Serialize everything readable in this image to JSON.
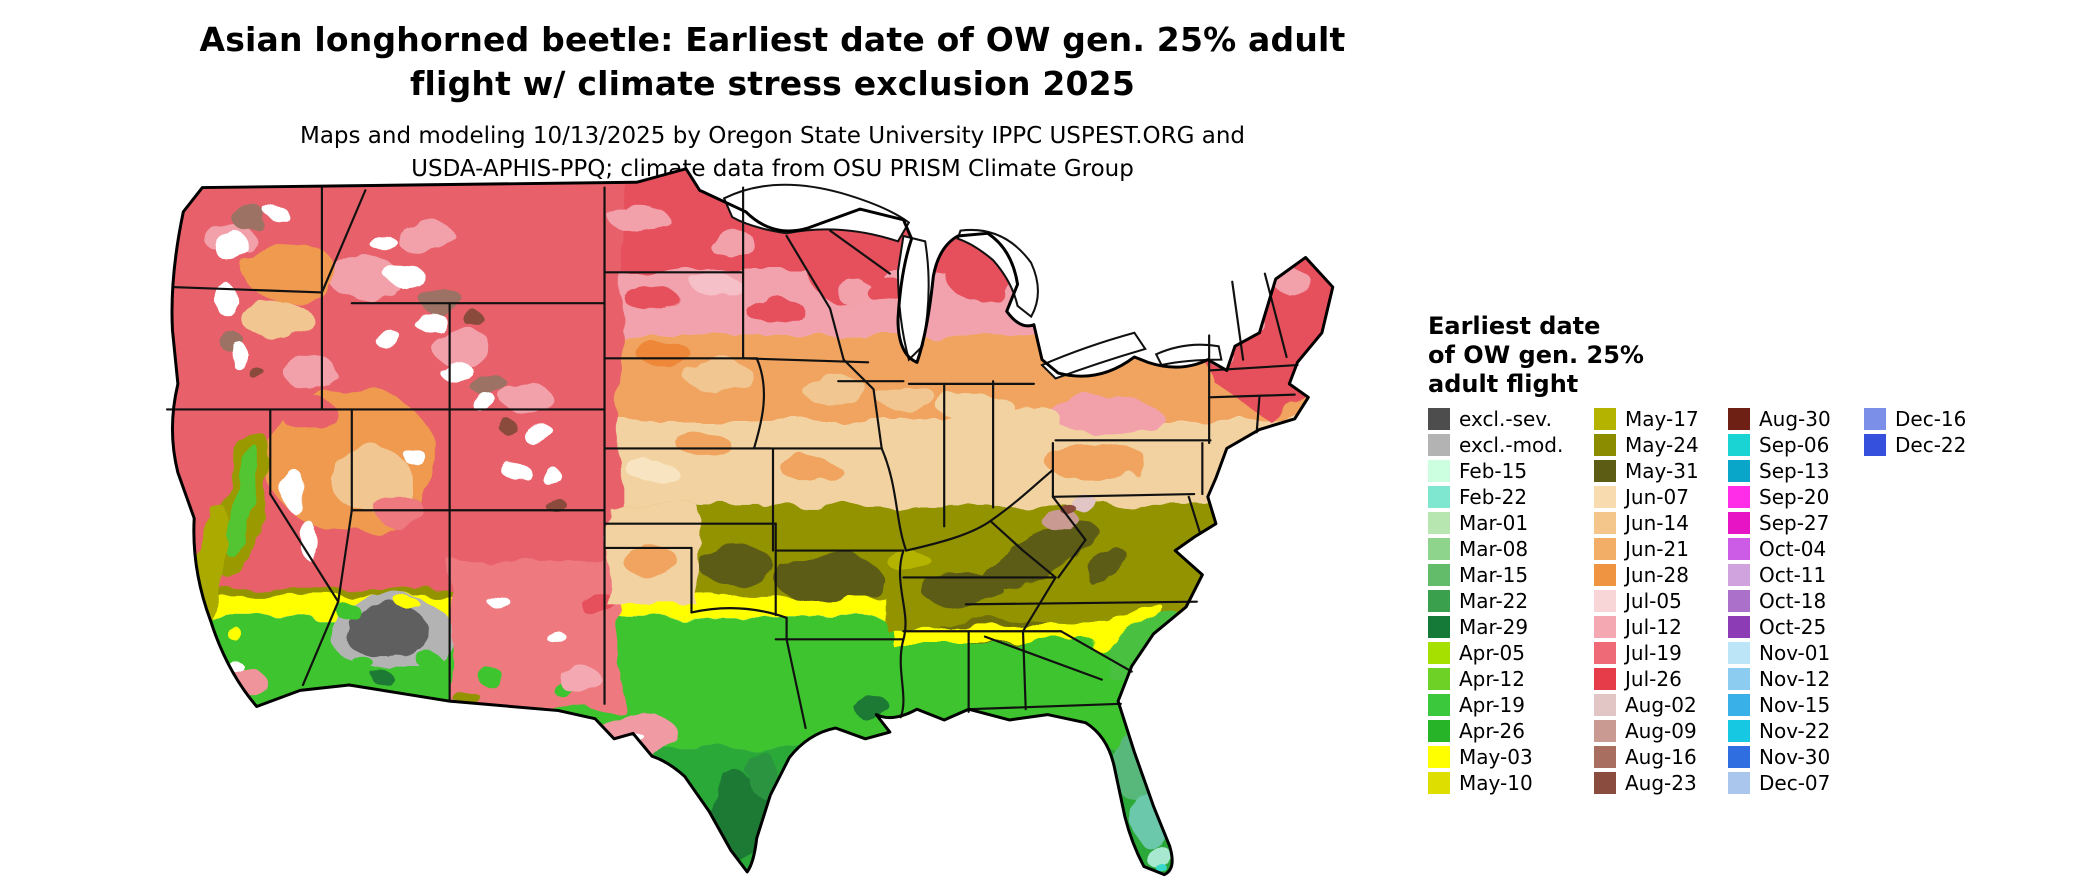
{
  "header": {
    "title_line1": "Asian longhorned beetle: Earliest date of OW gen. 25% adult",
    "title_line2": "flight w/ climate stress exclusion 2025",
    "subtitle_line1": "Maps and modeling 10/13/2025 by Oregon State University IPPC USPEST.ORG and",
    "subtitle_line2": "USDA-APHIS-PPQ; climate data from OSU PRISM Climate Group"
  },
  "legend": {
    "title_lines": [
      "Earliest date",
      "of OW gen. 25%",
      "adult flight"
    ],
    "columns": [
      [
        {
          "label": "excl.-sev.",
          "color": "#4d4d4d"
        },
        {
          "label": "excl.-mod.",
          "color": "#b3b3b3"
        },
        {
          "label": "Feb-15",
          "color": "#ccffe0"
        },
        {
          "label": "Feb-22",
          "color": "#7fe6d0"
        },
        {
          "label": "Mar-01",
          "color": "#b8e6b0"
        },
        {
          "label": "Mar-08",
          "color": "#8fd48c"
        },
        {
          "label": "Mar-15",
          "color": "#63bc6a"
        },
        {
          "label": "Mar-22",
          "color": "#3aa04e"
        },
        {
          "label": "Mar-29",
          "color": "#157a38"
        },
        {
          "label": "Apr-05",
          "color": "#a6e000"
        },
        {
          "label": "Apr-12",
          "color": "#6ed226"
        },
        {
          "label": "Apr-19",
          "color": "#3cc83c"
        },
        {
          "label": "Apr-26",
          "color": "#28b428"
        },
        {
          "label": "May-03",
          "color": "#ffff00"
        },
        {
          "label": "May-10",
          "color": "#dede00"
        }
      ],
      [
        {
          "label": "May-17",
          "color": "#b4b400"
        },
        {
          "label": "May-24",
          "color": "#8c8c00"
        },
        {
          "label": "May-31",
          "color": "#5c5c14"
        },
        {
          "label": "Jun-07",
          "color": "#f8dcb0"
        },
        {
          "label": "Jun-14",
          "color": "#f4c68c"
        },
        {
          "label": "Jun-21",
          "color": "#f2ae66"
        },
        {
          "label": "Jun-28",
          "color": "#ef9440"
        },
        {
          "label": "Jul-05",
          "color": "#f8d6d8"
        },
        {
          "label": "Jul-12",
          "color": "#f4a8b2"
        },
        {
          "label": "Jul-19",
          "color": "#ee6a76"
        },
        {
          "label": "Jul-26",
          "color": "#e63c4a"
        },
        {
          "label": "Aug-02",
          "color": "#e2c6c6"
        },
        {
          "label": "Aug-09",
          "color": "#c89a92"
        },
        {
          "label": "Aug-16",
          "color": "#a86e60"
        },
        {
          "label": "Aug-23",
          "color": "#8a4c3e"
        }
      ],
      [
        {
          "label": "Aug-30",
          "color": "#6e2014"
        },
        {
          "label": "Sep-06",
          "color": "#1ad4d4"
        },
        {
          "label": "Sep-13",
          "color": "#0aa6ca"
        },
        {
          "label": "Sep-20",
          "color": "#ff2ce8"
        },
        {
          "label": "Sep-27",
          "color": "#e614c4"
        },
        {
          "label": "Oct-04",
          "color": "#cc5ce6"
        },
        {
          "label": "Oct-11",
          "color": "#d0a2de"
        },
        {
          "label": "Oct-18",
          "color": "#aa70ca"
        },
        {
          "label": "Oct-25",
          "color": "#8c3cb4"
        },
        {
          "label": "Nov-01",
          "color": "#bce6f8"
        },
        {
          "label": "Nov-12",
          "color": "#8cccf0"
        },
        {
          "label": "Nov-15",
          "color": "#3ab0e8"
        },
        {
          "label": "Nov-22",
          "color": "#16c8e2"
        },
        {
          "label": "Nov-30",
          "color": "#2e6ee0"
        },
        {
          "label": "Dec-07",
          "color": "#aac6ec"
        }
      ],
      [
        {
          "label": "Dec-16",
          "color": "#7b8fe8"
        },
        {
          "label": "Dec-22",
          "color": "#3450dc"
        }
      ]
    ]
  },
  "map": {
    "region": "Continental United States",
    "palette": {
      "red": "#e6505c",
      "pink": "#f2a2ac",
      "orange": "#f0a45e",
      "tan": "#f2d2a0",
      "olive": "#939300",
      "dark_olive": "#5c5c14",
      "yellow": "#ffff00",
      "green": "#3ec42e",
      "dark_green": "#1c7a34",
      "white_excluded": "#ffffff",
      "gray_excluded": "#5e5e5e"
    }
  }
}
